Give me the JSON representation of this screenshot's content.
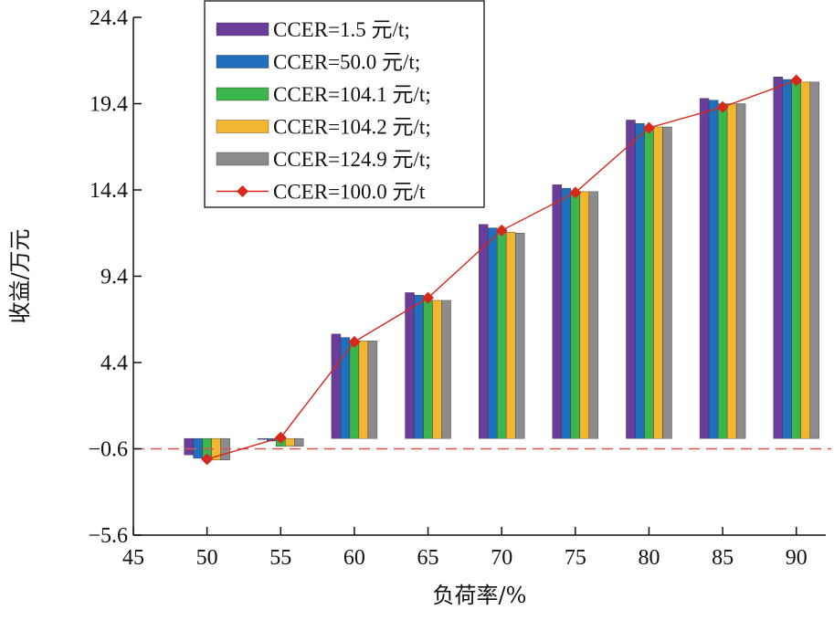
{
  "chart_data": {
    "type": "bar",
    "xlabel": "负荷率/%",
    "ylabel": "收益/万元",
    "xlim": [
      45,
      92
    ],
    "ylim": [
      -5.6,
      24.4
    ],
    "x_ticks": [
      "45",
      "50",
      "55",
      "60",
      "65",
      "70",
      "75",
      "80",
      "85",
      "90"
    ],
    "y_ticks": [
      "24.4",
      "19.4",
      "14.4",
      "9.4",
      "4.4",
      "−0.6",
      "−5.6"
    ],
    "categories": [
      50,
      55,
      60,
      65,
      70,
      75,
      80,
      85,
      90
    ],
    "series": [
      {
        "name": "CCER=1.5 元/t;",
        "kind": "bar",
        "color": "#6a3d9a",
        "values": [
          -0.95,
          -0.05,
          6.05,
          8.45,
          12.4,
          14.7,
          18.45,
          19.7,
          20.95
        ]
      },
      {
        "name": "CCER=50.0 元/t;",
        "kind": "bar",
        "color": "#1f6fbd",
        "values": [
          -1.15,
          -0.15,
          5.85,
          8.3,
          12.2,
          14.5,
          18.25,
          19.6,
          20.8
        ]
      },
      {
        "name": "CCER=104.1 元/t;",
        "kind": "bar",
        "color": "#3cb54a",
        "values": [
          -1.25,
          -0.45,
          5.65,
          8.0,
          12.0,
          14.3,
          18.1,
          19.4,
          20.65
        ]
      },
      {
        "name": "CCER=104.2 元/t;",
        "kind": "bar",
        "color": "#f3b630",
        "values": [
          -1.25,
          -0.45,
          5.65,
          8.0,
          11.95,
          14.3,
          18.05,
          19.4,
          20.65
        ]
      },
      {
        "name": "CCER=124.9 元/t;",
        "kind": "bar",
        "color": "#8c8c8c",
        "values": [
          -1.25,
          -0.45,
          5.65,
          8.0,
          11.9,
          14.3,
          18.05,
          19.4,
          20.65
        ]
      },
      {
        "name": "CCER=100.0 元/t",
        "kind": "line",
        "color": "#d6281c",
        "values": [
          -1.2,
          0.05,
          5.6,
          8.15,
          12.05,
          14.25,
          18.0,
          19.2,
          20.75
        ]
      }
    ],
    "reference_line": {
      "y": -0.6,
      "color": "#d9534f",
      "style": "dashed"
    },
    "legend_position": "top-left",
    "grid": false
  }
}
